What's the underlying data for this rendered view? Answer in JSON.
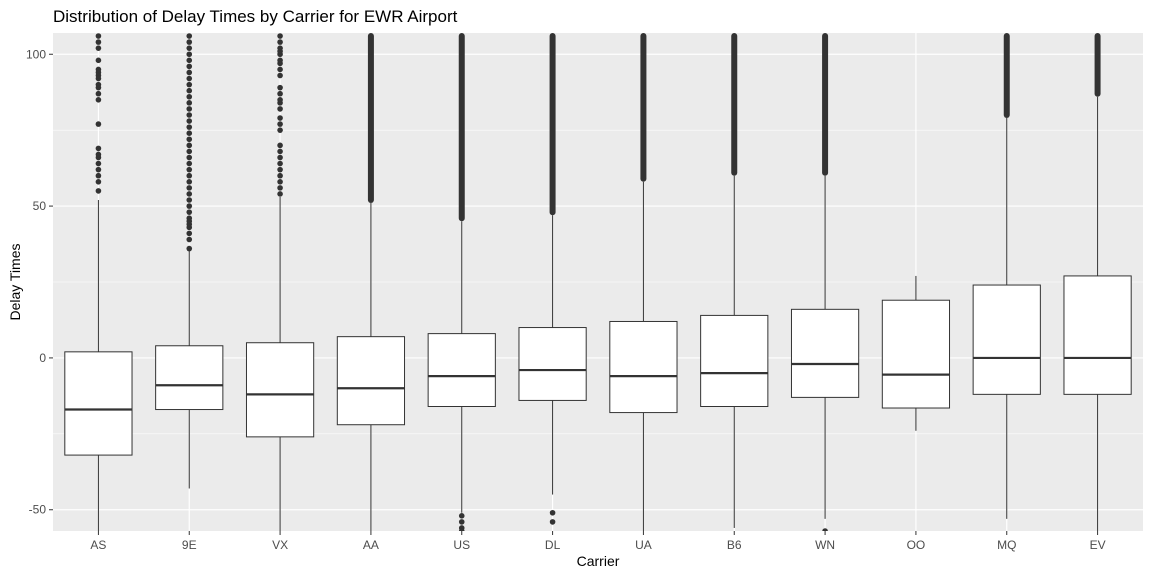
{
  "chart_data": {
    "type": "boxplot",
    "title": "Distribution of Delay Times by Carrier for EWR Airport",
    "xlabel": "Carrier",
    "ylabel": "Delay Times",
    "ylim": [
      -57,
      107
    ],
    "yticks": [
      -50,
      0,
      50,
      100
    ],
    "grid": true,
    "legend": "none",
    "colors": {
      "panel": "#ebebeb",
      "grid_major": "#ffffff",
      "box_fill": "#ffffff",
      "box_stroke": "#333333",
      "outlier": "#333333",
      "text": "#000000",
      "tick_text": "#4d4d4d"
    },
    "categories": [
      "AS",
      "9E",
      "VX",
      "AA",
      "US",
      "DL",
      "UA",
      "B6",
      "WN",
      "OO",
      "MQ",
      "EV"
    ],
    "boxes": [
      {
        "carrier": "AS",
        "whisker_low": -57,
        "q1": -32,
        "median": -17,
        "q3": 2,
        "whisker_high": 52,
        "outliers_low": [],
        "outliers_high": [
          55,
          58,
          60,
          62,
          64,
          66,
          67,
          69,
          77,
          85,
          87,
          89,
          90,
          92,
          93,
          94,
          95,
          98,
          102,
          104,
          106
        ],
        "dense_high_from": null,
        "dense_low_from": null
      },
      {
        "carrier": "9E",
        "whisker_low": -43,
        "q1": -17,
        "median": -9,
        "q3": 4,
        "whisker_high": 36,
        "outliers_low": [],
        "outliers_high": [
          36,
          39,
          41,
          43,
          44,
          45,
          46,
          48,
          50,
          52,
          54,
          56,
          58,
          60,
          62,
          64,
          66,
          68,
          70,
          72,
          74,
          76,
          78,
          80,
          82,
          84,
          86,
          88,
          90,
          92,
          94,
          96,
          98,
          100,
          102,
          104,
          106
        ],
        "dense_high_from": null,
        "dense_low_from": null
      },
      {
        "carrier": "VX",
        "whisker_low": -57,
        "q1": -26,
        "median": -12,
        "q3": 5,
        "whisker_high": 53,
        "outliers_low": [],
        "outliers_high": [
          54,
          56,
          58,
          60,
          62,
          64,
          66,
          68,
          70,
          75,
          77,
          79,
          82,
          84,
          85,
          87,
          89,
          93,
          95,
          97,
          98,
          100,
          101,
          102,
          104,
          106
        ],
        "dense_high_from": null,
        "dense_low_from": null
      },
      {
        "carrier": "AA",
        "whisker_low": -57,
        "q1": -22,
        "median": -10,
        "q3": 7,
        "whisker_high": 51,
        "outliers_low": [],
        "outliers_high": [],
        "dense_high_from": 51,
        "dense_low_from": null
      },
      {
        "carrier": "US",
        "whisker_low": -51,
        "q1": -16,
        "median": -6,
        "q3": 8,
        "whisker_high": 45,
        "outliers_low": [
          -52,
          -54,
          -56,
          -57
        ],
        "outliers_high": [],
        "dense_high_from": 45,
        "dense_low_from": null
      },
      {
        "carrier": "DL",
        "whisker_low": -45,
        "q1": -14,
        "median": -4,
        "q3": 10,
        "whisker_high": 47,
        "outliers_low": [
          -51,
          -54
        ],
        "outliers_high": [],
        "dense_high_from": 47,
        "dense_low_from": null
      },
      {
        "carrier": "UA",
        "whisker_low": -57,
        "q1": -18,
        "median": -6,
        "q3": 12,
        "whisker_high": 58,
        "outliers_low": [],
        "outliers_high": [],
        "dense_high_from": 58,
        "dense_low_from": null
      },
      {
        "carrier": "B6",
        "whisker_low": -56,
        "q1": -16,
        "median": -5,
        "q3": 14,
        "whisker_high": 60,
        "outliers_low": [],
        "outliers_high": [],
        "dense_high_from": 60,
        "dense_low_from": null
      },
      {
        "carrier": "WN",
        "whisker_low": -53,
        "q1": -13,
        "median": -2,
        "q3": 16,
        "whisker_high": 60,
        "outliers_low": [
          -57
        ],
        "outliers_high": [],
        "dense_high_from": 60,
        "dense_low_from": null
      },
      {
        "carrier": "OO",
        "whisker_low": -24,
        "q1": -16.5,
        "median": -5.5,
        "q3": 19,
        "whisker_high": 27,
        "outliers_low": [],
        "outliers_high": [],
        "dense_high_from": null,
        "dense_low_from": null
      },
      {
        "carrier": "MQ",
        "whisker_low": -53,
        "q1": -12,
        "median": 0,
        "q3": 24,
        "whisker_high": 79,
        "outliers_low": [],
        "outliers_high": [],
        "dense_high_from": 79,
        "dense_low_from": null
      },
      {
        "carrier": "EV",
        "whisker_low": -57,
        "q1": -12,
        "median": 0,
        "q3": 27,
        "whisker_high": 86,
        "outliers_low": [],
        "outliers_high": [],
        "dense_high_from": 86,
        "dense_low_from": null
      }
    ]
  }
}
